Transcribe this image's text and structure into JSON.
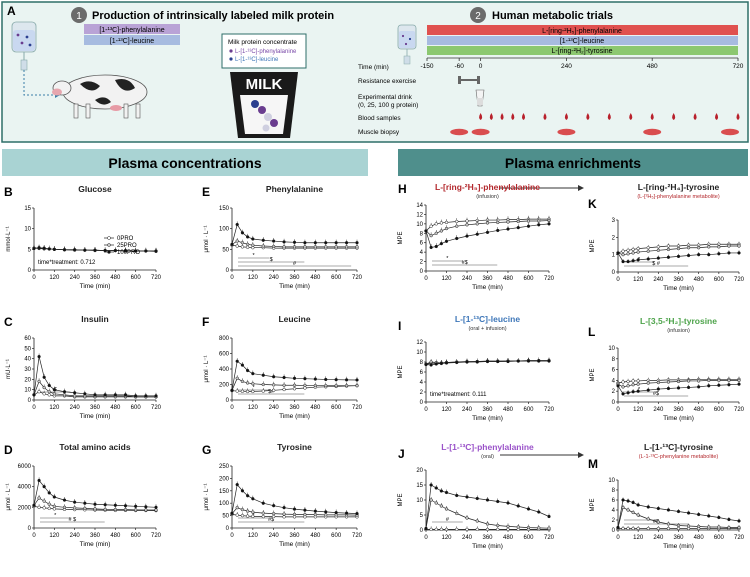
{
  "colors": {
    "panelA_bg": "#eaf4f2",
    "panelA_border": "#2e6e68",
    "header_left": "#a9d3d3",
    "header_right": "#4f8f8c",
    "bar_purple": "#b9a3d6",
    "bar_blue": "#a7bbe0",
    "bar_red": "#e0514f",
    "bar_green": "#8cc870",
    "drop_red": "#b8202b",
    "pink": "#e79aa5",
    "title_red": "#b3282d",
    "title_blue": "#3d76b8",
    "title_green": "#4da34a",
    "title_purple": "#9a52c9"
  },
  "panelA": {
    "letter": "A",
    "step1_num": "1",
    "step1_title": "Production of intrinsically  labeled milk protein",
    "step1_bar1": "[1-¹³C]-phenylalanine",
    "step1_bar2": "[1-¹³C]-leucine",
    "milk_box_title": "Milk protein concentrate",
    "milk_box_line1": "L-[1-¹³C]-phenylalanine",
    "milk_box_line2": "L-[1-¹³C]-leucine",
    "milk_label": "MILK",
    "step2_num": "2",
    "step2_title": "Human metabolic trials",
    "step2_bar1": "L-[ring-²H₅]-phenylalanine",
    "step2_bar2": "[1-¹³C]-leucine",
    "step2_bar3": "L-[ring-²H₂]-tyrosine",
    "row_labels": [
      "Time (min)",
      "Resistance exercise",
      "Experimental drink",
      "(0, 25, 100 g protein)",
      "Blood samples",
      "Muscle biopsy"
    ],
    "time_ticks": [
      "-150",
      "-60",
      "0",
      "240",
      "480",
      "720"
    ]
  },
  "headers": {
    "left": "Plasma concentrations",
    "right": "Plasma enrichments"
  },
  "panels": [
    {
      "letter": "B",
      "title": "Glucose",
      "ylabel": "mmol·L⁻¹",
      "yticks": [
        "0",
        "5",
        "10",
        "15"
      ],
      "ylim": [
        0,
        15
      ],
      "xlabel": "Time (min)",
      "annot": "time*treatment: 0.712",
      "legend": [
        "0PRO",
        "25PRO",
        "100PRO"
      ],
      "sig": []
    },
    {
      "letter": "C",
      "title": "Insulin",
      "ylabel": "mU·L⁻¹",
      "yticks": [
        "0",
        "10",
        "20",
        "30",
        "40",
        "50",
        "60"
      ],
      "ylim": [
        0,
        60
      ],
      "xlabel": "Time (min)",
      "sig": [
        "$"
      ]
    },
    {
      "letter": "D",
      "title": "Total amino acids",
      "ylabel": "μmol · L⁻¹",
      "yticks": [
        "0",
        "2000",
        "4000",
        "6000"
      ],
      "ylim": [
        0,
        6000
      ],
      "xlabel": "Time (min)",
      "sig": [
        "*",
        "# $"
      ]
    },
    {
      "letter": "E",
      "title": "Phenylalanine",
      "ylabel": "μmol · L⁻¹",
      "yticks": [
        "0",
        "50",
        "100",
        "150"
      ],
      "ylim": [
        0,
        150
      ],
      "xlabel": "Time (min)",
      "sig": [
        "*",
        "$",
        "#"
      ]
    },
    {
      "letter": "F",
      "title": "Leucine",
      "ylabel": "μmol · L⁻¹",
      "yticks": [
        "0",
        "200",
        "400",
        "600",
        "800"
      ],
      "ylim": [
        0,
        800
      ],
      "xlabel": "Time (min)",
      "sig": [
        "*",
        "$#"
      ]
    },
    {
      "letter": "G",
      "title": "Tyrosine",
      "ylabel": "μmol · L⁻¹",
      "yticks": [
        "0",
        "50",
        "100",
        "150",
        "200",
        "250"
      ],
      "ylim": [
        0,
        250
      ],
      "xlabel": "Time (min)",
      "sig": [
        "*",
        "#$"
      ]
    },
    {
      "letter": "H",
      "title": "L-[ring-²H₅]-phenylalanine",
      "subtitle": "(infusion)",
      "ylabel": "MPE",
      "yticks": [
        "0",
        "2",
        "4",
        "6",
        "8",
        "10",
        "12",
        "14"
      ],
      "ylim": [
        0,
        14
      ],
      "xlabel": "Time (min)",
      "sig": [
        "*",
        "#$"
      ]
    },
    {
      "letter": "I",
      "title": "L-[1-¹³C]-leucine",
      "subtitle": "(oral + infusion)",
      "ylabel": "MPE",
      "yticks": [
        "0",
        "2",
        "4",
        "6",
        "8",
        "10",
        "12"
      ],
      "ylim": [
        0,
        12
      ],
      "xlabel": "Time (min)",
      "annot": "time*treatment: 0.111",
      "sig": []
    },
    {
      "letter": "J",
      "title": "L-[1-¹³C]-phenylalanine",
      "subtitle": "(oral)",
      "ylabel": "MPE",
      "yticks": [
        "0",
        "5",
        "10",
        "15",
        "20"
      ],
      "ylim": [
        0,
        20
      ],
      "xlabel": "Time (min)",
      "sig": [
        "#"
      ]
    },
    {
      "letter": "K",
      "title": "L-[ring-²H₄]-tyrosine",
      "subtitle": "(L-[²H₅]-phenylalanine metabolite)",
      "ylabel": "MPE",
      "yticks": [
        "0",
        "1",
        "2",
        "3"
      ],
      "ylim": [
        0,
        3
      ],
      "xlabel": "Time (min)",
      "sig": [
        "*",
        "$ #"
      ]
    },
    {
      "letter": "L",
      "title": "L-[3,5-²H₂]-tyrosine",
      "subtitle": "(infusion)",
      "ylabel": "MPE",
      "yticks": [
        "0",
        "2",
        "4",
        "6",
        "8",
        "10"
      ],
      "ylim": [
        0,
        10
      ],
      "xlabel": "Time (min)",
      "sig": [
        "*",
        "#$"
      ]
    },
    {
      "letter": "M",
      "title": "L-[1-¹³C]-tyrosine",
      "subtitle": "(L-1-¹³C-phenylanine metabolite)",
      "ylabel": "MPE",
      "yticks": [
        "0",
        "2",
        "4",
        "6",
        "8",
        "10"
      ],
      "ylim": [
        0,
        10
      ],
      "xlabel": "Time (min)",
      "sig": [
        "*",
        "#$"
      ]
    }
  ],
  "xticks": [
    "0",
    "120",
    "240",
    "360",
    "480",
    "600",
    "720"
  ],
  "chart_data": {
    "type": "line",
    "x": [
      0,
      30,
      60,
      90,
      120,
      180,
      240,
      300,
      360,
      420,
      480,
      540,
      600,
      660,
      720
    ],
    "xlim": [
      0,
      720
    ],
    "series_names": [
      "0PRO",
      "25PRO",
      "100PRO"
    ],
    "panels": {
      "B": {
        "0PRO": [
          5.3,
          5.2,
          5.1,
          5.1,
          5.0,
          4.9,
          4.9,
          4.8,
          4.8,
          4.7,
          4.7,
          4.6,
          4.6,
          4.6,
          4.6
        ],
        "25PRO": [
          5.3,
          5.3,
          5.2,
          5.1,
          5.0,
          4.9,
          4.8,
          4.8,
          4.7,
          4.7,
          4.7,
          4.6,
          4.6,
          4.6,
          4.5
        ],
        "100PRO": [
          5.2,
          5.4,
          5.3,
          5.1,
          5.0,
          4.9,
          4.9,
          4.8,
          4.8,
          4.7,
          4.7,
          4.7,
          4.6,
          4.6,
          4.6
        ]
      },
      "C": {
        "0PRO": [
          5,
          8,
          6,
          5,
          4,
          4,
          3,
          3,
          3,
          3,
          3,
          3,
          3,
          3,
          3
        ],
        "25PRO": [
          5,
          18,
          12,
          8,
          6,
          5,
          4,
          4,
          4,
          4,
          4,
          4,
          3,
          3,
          3
        ],
        "100PRO": [
          5,
          42,
          22,
          14,
          10,
          8,
          7,
          6,
          5,
          5,
          5,
          5,
          4,
          4,
          4
        ]
      },
      "D": {
        "0PRO": [
          2100,
          2000,
          1950,
          1900,
          1850,
          1800,
          1780,
          1760,
          1740,
          1720,
          1700,
          1700,
          1690,
          1690,
          1680
        ],
        "25PRO": [
          2200,
          2900,
          2600,
          2300,
          2100,
          2000,
          1950,
          1900,
          1850,
          1800,
          1790,
          1780,
          1760,
          1750,
          1740
        ],
        "100PRO": [
          2200,
          4600,
          4000,
          3400,
          3000,
          2700,
          2500,
          2400,
          2300,
          2250,
          2200,
          2150,
          2100,
          2050,
          2000
        ]
      },
      "E": {
        "0PRO": [
          60,
          58,
          56,
          55,
          54,
          54,
          53,
          53,
          53,
          53,
          53,
          53,
          53,
          53,
          53
        ],
        "25PRO": [
          62,
          70,
          66,
          62,
          60,
          58,
          57,
          56,
          56,
          56,
          56,
          56,
          56,
          56,
          56
        ],
        "100PRO": [
          62,
          110,
          90,
          80,
          75,
          72,
          70,
          68,
          67,
          66,
          66,
          66,
          66,
          66,
          66
        ]
      },
      "F": {
        "0PRO": [
          120,
          115,
          112,
          110,
          110,
          115,
          125,
          135,
          145,
          155,
          165,
          170,
          175,
          180,
          185
        ],
        "25PRO": [
          125,
          280,
          240,
          220,
          210,
          200,
          195,
          190,
          190,
          188,
          186,
          185,
          185,
          185,
          185
        ],
        "100PRO": [
          125,
          500,
          450,
          380,
          340,
          320,
          300,
          290,
          280,
          275,
          270,
          265,
          262,
          260,
          258
        ]
      },
      "G": {
        "0PRO": [
          55,
          52,
          50,
          48,
          47,
          46,
          46,
          45,
          45,
          45,
          45,
          45,
          45,
          45,
          45
        ],
        "25PRO": [
          58,
          82,
          74,
          68,
          64,
          60,
          58,
          56,
          55,
          54,
          54,
          53,
          53,
          53,
          52
        ],
        "100PRO": [
          60,
          175,
          150,
          130,
          118,
          100,
          90,
          82,
          76,
          72,
          68,
          65,
          62,
          60,
          58
        ]
      },
      "H": {
        "0PRO": [
          8.5,
          9.5,
          10.0,
          10.2,
          10.3,
          10.5,
          10.6,
          10.7,
          10.8,
          10.8,
          10.9,
          10.9,
          11.0,
          11.0,
          11.0
        ],
        "25PRO": [
          8.5,
          7.5,
          8.0,
          8.5,
          9.0,
          9.5,
          9.8,
          10.0,
          10.2,
          10.3,
          10.4,
          10.5,
          10.6,
          10.6,
          10.7
        ],
        "100PRO": [
          8.5,
          5.0,
          5.2,
          5.8,
          6.3,
          6.9,
          7.4,
          7.8,
          8.2,
          8.6,
          8.9,
          9.2,
          9.5,
          9.8,
          10.0
        ]
      },
      "I": {
        "0PRO": [
          7.5,
          7.8,
          7.7,
          7.8,
          7.9,
          8.0,
          8.0,
          8.1,
          8.1,
          8.1,
          8.2,
          8.2,
          8.2,
          8.2,
          8.2
        ],
        "25PRO": [
          7.6,
          8.0,
          7.9,
          7.8,
          7.9,
          8.0,
          8.1,
          8.1,
          8.2,
          8.2,
          8.2,
          8.2,
          8.3,
          8.3,
          8.3
        ],
        "100PRO": [
          7.5,
          7.4,
          7.6,
          7.7,
          7.8,
          7.9,
          8.0,
          8.0,
          8.1,
          8.1,
          8.1,
          8.2,
          8.2,
          8.2,
          8.2
        ]
      },
      "J": {
        "0PRO": [
          0.2,
          0.2,
          0.2,
          0.2,
          0.2,
          0.2,
          0.2,
          0.2,
          0.2,
          0.2,
          0.2,
          0.2,
          0.2,
          0.2,
          0.2
        ],
        "25PRO": [
          0.5,
          10,
          9,
          8,
          7,
          5.5,
          4,
          3,
          2,
          1.5,
          1.2,
          1,
          0.8,
          0.7,
          0.6
        ],
        "100PRO": [
          0.5,
          15,
          14,
          13,
          12.5,
          11.5,
          11,
          10.5,
          10,
          9.5,
          9,
          8,
          7,
          6,
          4.5
        ]
      },
      "K": {
        "0PRO": [
          1.1,
          1.2,
          1.25,
          1.3,
          1.35,
          1.4,
          1.45,
          1.5,
          1.5,
          1.55,
          1.55,
          1.6,
          1.6,
          1.6,
          1.6
        ],
        "25PRO": [
          1.1,
          1.0,
          1.05,
          1.1,
          1.15,
          1.2,
          1.25,
          1.3,
          1.35,
          1.4,
          1.4,
          1.45,
          1.45,
          1.5,
          1.5
        ],
        "100PRO": [
          1.1,
          0.6,
          0.6,
          0.65,
          0.7,
          0.75,
          0.8,
          0.85,
          0.9,
          0.95,
          1.0,
          1.0,
          1.05,
          1.1,
          1.1
        ]
      },
      "L": {
        "0PRO": [
          3.5,
          3.7,
          3.8,
          3.9,
          3.9,
          4.0,
          4.0,
          4.1,
          4.1,
          4.1,
          4.2,
          4.2,
          4.2,
          4.2,
          4.2
        ],
        "25PRO": [
          3.3,
          2.8,
          3.0,
          3.2,
          3.3,
          3.5,
          3.6,
          3.7,
          3.8,
          3.9,
          3.9,
          4.0,
          4.0,
          4.0,
          4.0
        ],
        "100PRO": [
          3.0,
          1.5,
          1.7,
          1.9,
          2.0,
          2.2,
          2.4,
          2.5,
          2.6,
          2.7,
          2.8,
          3.0,
          3.1,
          3.2,
          3.3
        ]
      },
      "M": {
        "0PRO": [
          0.3,
          0.3,
          0.3,
          0.3,
          0.3,
          0.3,
          0.3,
          0.3,
          0.3,
          0.3,
          0.3,
          0.3,
          0.3,
          0.3,
          0.3
        ],
        "25PRO": [
          0.5,
          4.5,
          4.0,
          3.5,
          3.0,
          2.2,
          1.6,
          1.2,
          0.9,
          0.8,
          0.7,
          0.6,
          0.6,
          0.5,
          0.5
        ],
        "100PRO": [
          0.5,
          6.0,
          5.8,
          5.5,
          5.0,
          4.6,
          4.3,
          4.0,
          3.7,
          3.4,
          3.1,
          2.8,
          2.5,
          2.1,
          1.8
        ]
      }
    }
  }
}
